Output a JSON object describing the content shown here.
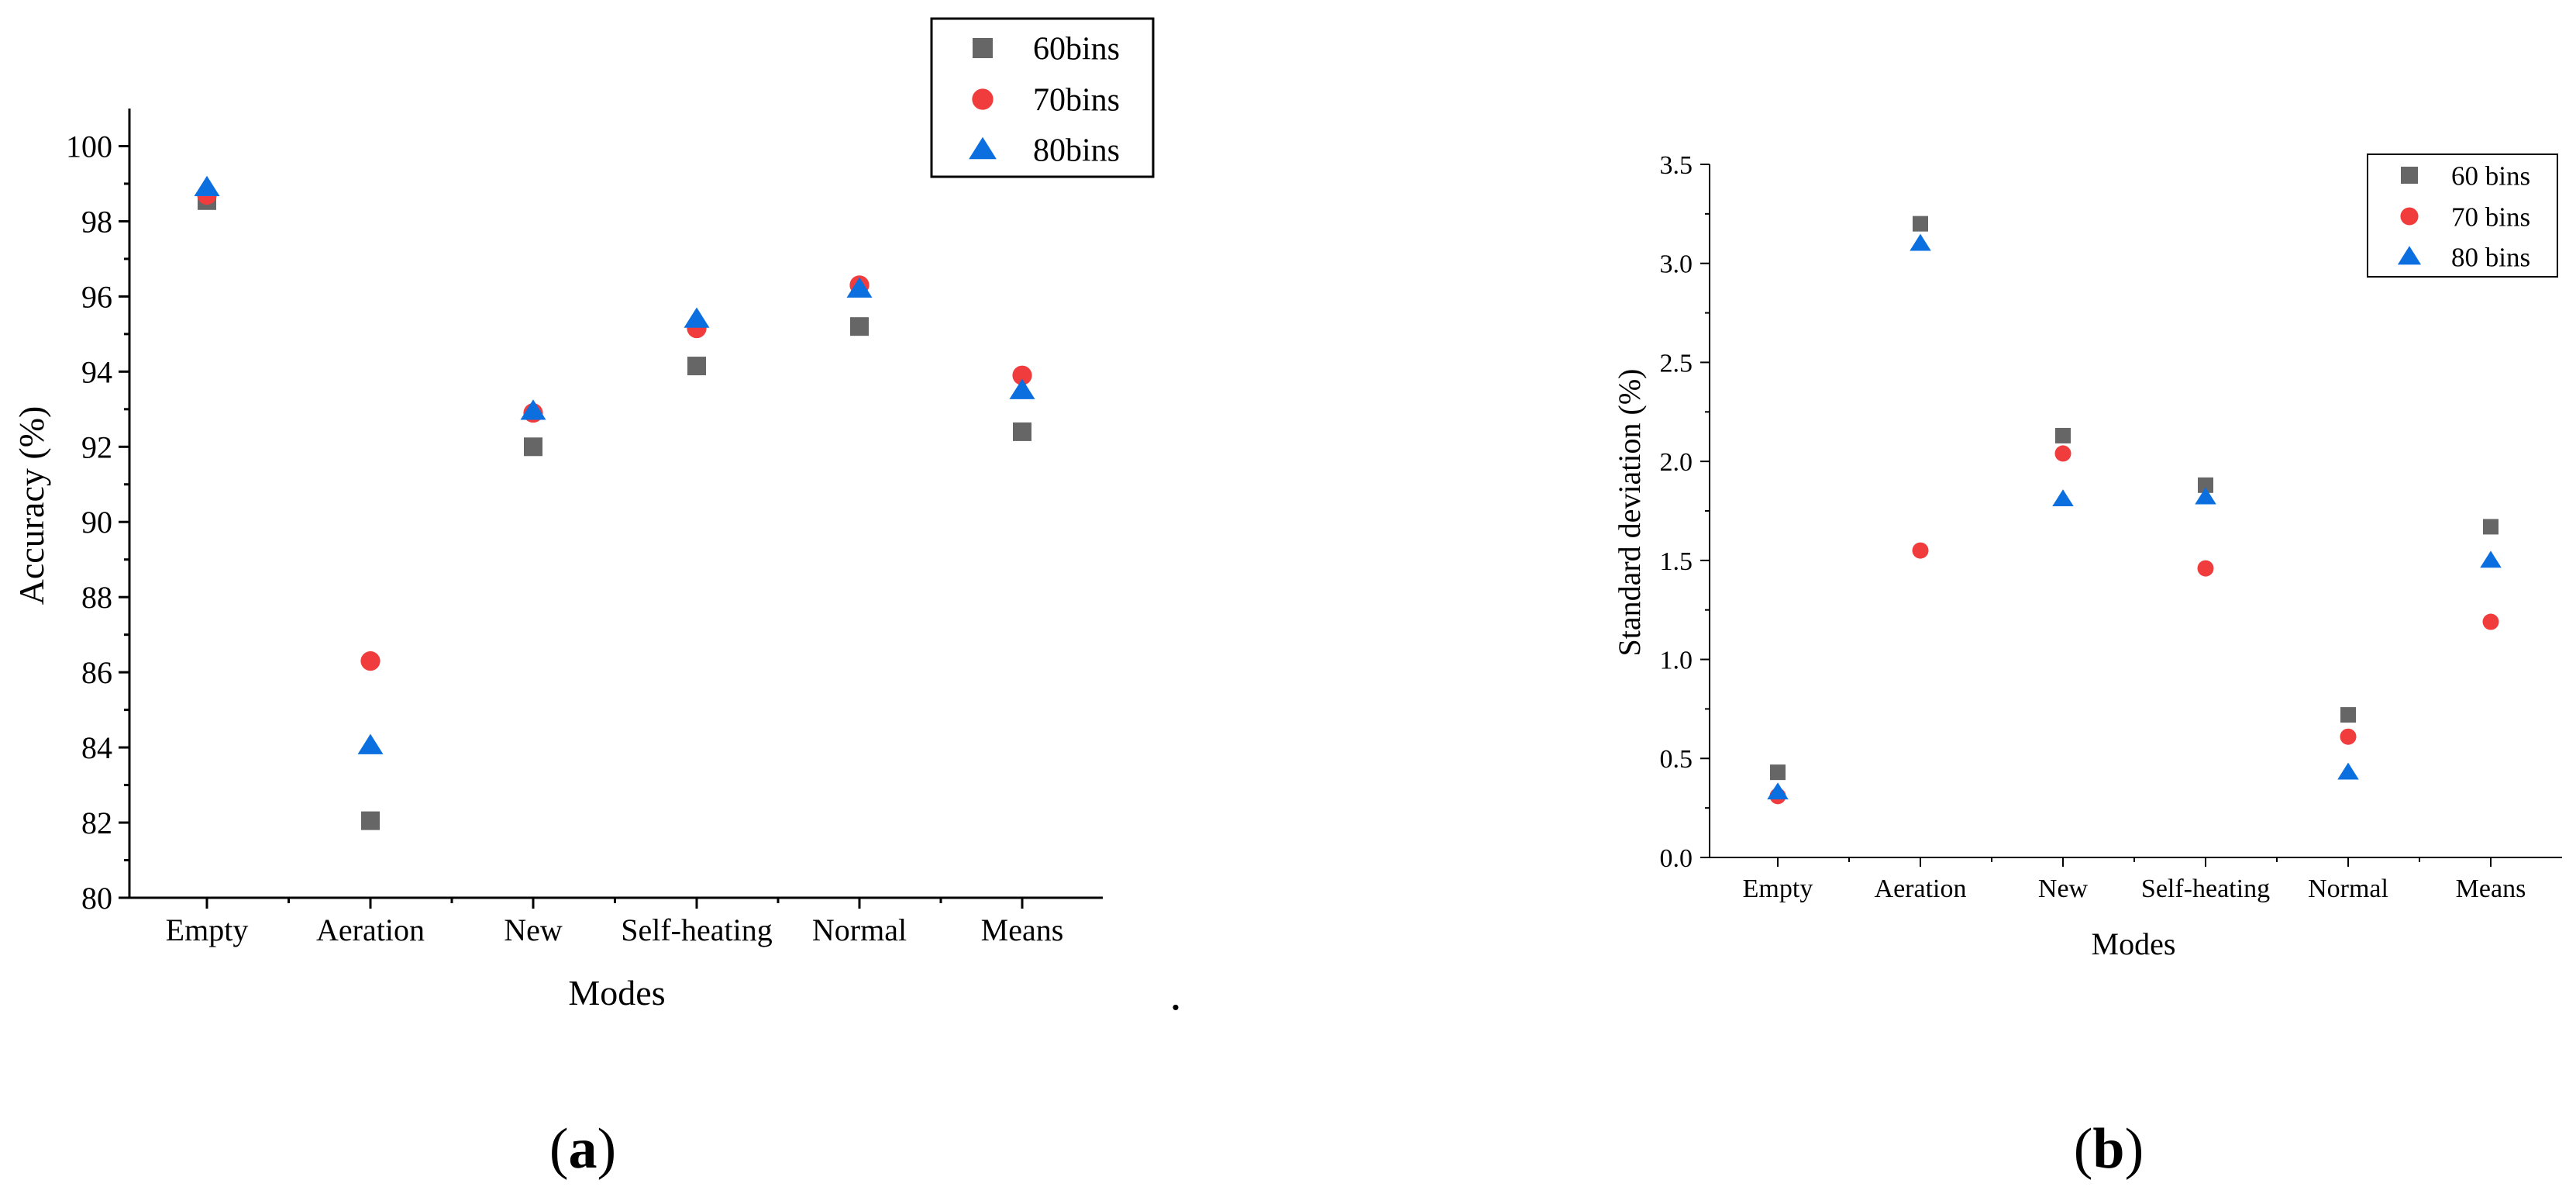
{
  "series_colors": {
    "60": "#666666",
    "70": "#f03c3c",
    "80": "#0b6fe0"
  },
  "chart_data": [
    {
      "type": "scatter",
      "panel": "a",
      "xlabel": "Modes",
      "ylabel": "Accuracy (%)",
      "categories": [
        "Empty",
        "Aeration",
        "New",
        "Self-heating",
        "Normal",
        "Means"
      ],
      "ylim": [
        80,
        101
      ],
      "yticks": [
        80,
        82,
        84,
        86,
        88,
        90,
        92,
        94,
        96,
        98,
        100
      ],
      "ytick_labels": [
        "80",
        "82",
        "84",
        "86",
        "88",
        "90",
        "92",
        "94",
        "96",
        "98",
        "100"
      ],
      "legend_position": "top-right",
      "series": [
        {
          "name": "60bins",
          "marker": "square",
          "values": [
            98.55,
            82.05,
            92.0,
            94.15,
            95.2,
            92.4
          ]
        },
        {
          "name": "70bins",
          "marker": "circle",
          "values": [
            98.7,
            86.3,
            92.9,
            95.15,
            96.3,
            93.9
          ]
        },
        {
          "name": "80bins",
          "marker": "triangle",
          "values": [
            98.9,
            84.05,
            92.95,
            95.4,
            96.2,
            93.5
          ]
        }
      ]
    },
    {
      "type": "scatter",
      "panel": "b",
      "xlabel": "Modes",
      "ylabel": "Standard deviation (%)",
      "categories": [
        "Empty",
        "Aeration",
        "New",
        "Self-heating",
        "Normal",
        "Means"
      ],
      "ylim": [
        0,
        3.5
      ],
      "yticks": [
        0,
        0.5,
        1.0,
        1.5,
        2.0,
        2.5,
        3.0,
        3.5
      ],
      "ytick_labels": [
        "0.0",
        "0.5",
        "1.0",
        "1.5",
        "2.0",
        "2.5",
        "3.0",
        "3.5"
      ],
      "legend_position": "top-right",
      "series": [
        {
          "name": "60 bins",
          "marker": "square",
          "values": [
            0.43,
            3.2,
            2.13,
            1.88,
            0.72,
            1.67
          ]
        },
        {
          "name": "70 bins",
          "marker": "circle",
          "values": [
            0.31,
            1.55,
            2.04,
            1.46,
            0.61,
            1.19
          ]
        },
        {
          "name": "80 bins",
          "marker": "triangle",
          "values": [
            0.33,
            3.1,
            1.81,
            1.82,
            0.43,
            1.5
          ]
        }
      ]
    }
  ],
  "panel_labels": {
    "a": {
      "open": "(",
      "letter": "a",
      "close": ")"
    },
    "b": {
      "open": "(",
      "letter": "b",
      "close": ")"
    }
  },
  "stray_mark": "."
}
